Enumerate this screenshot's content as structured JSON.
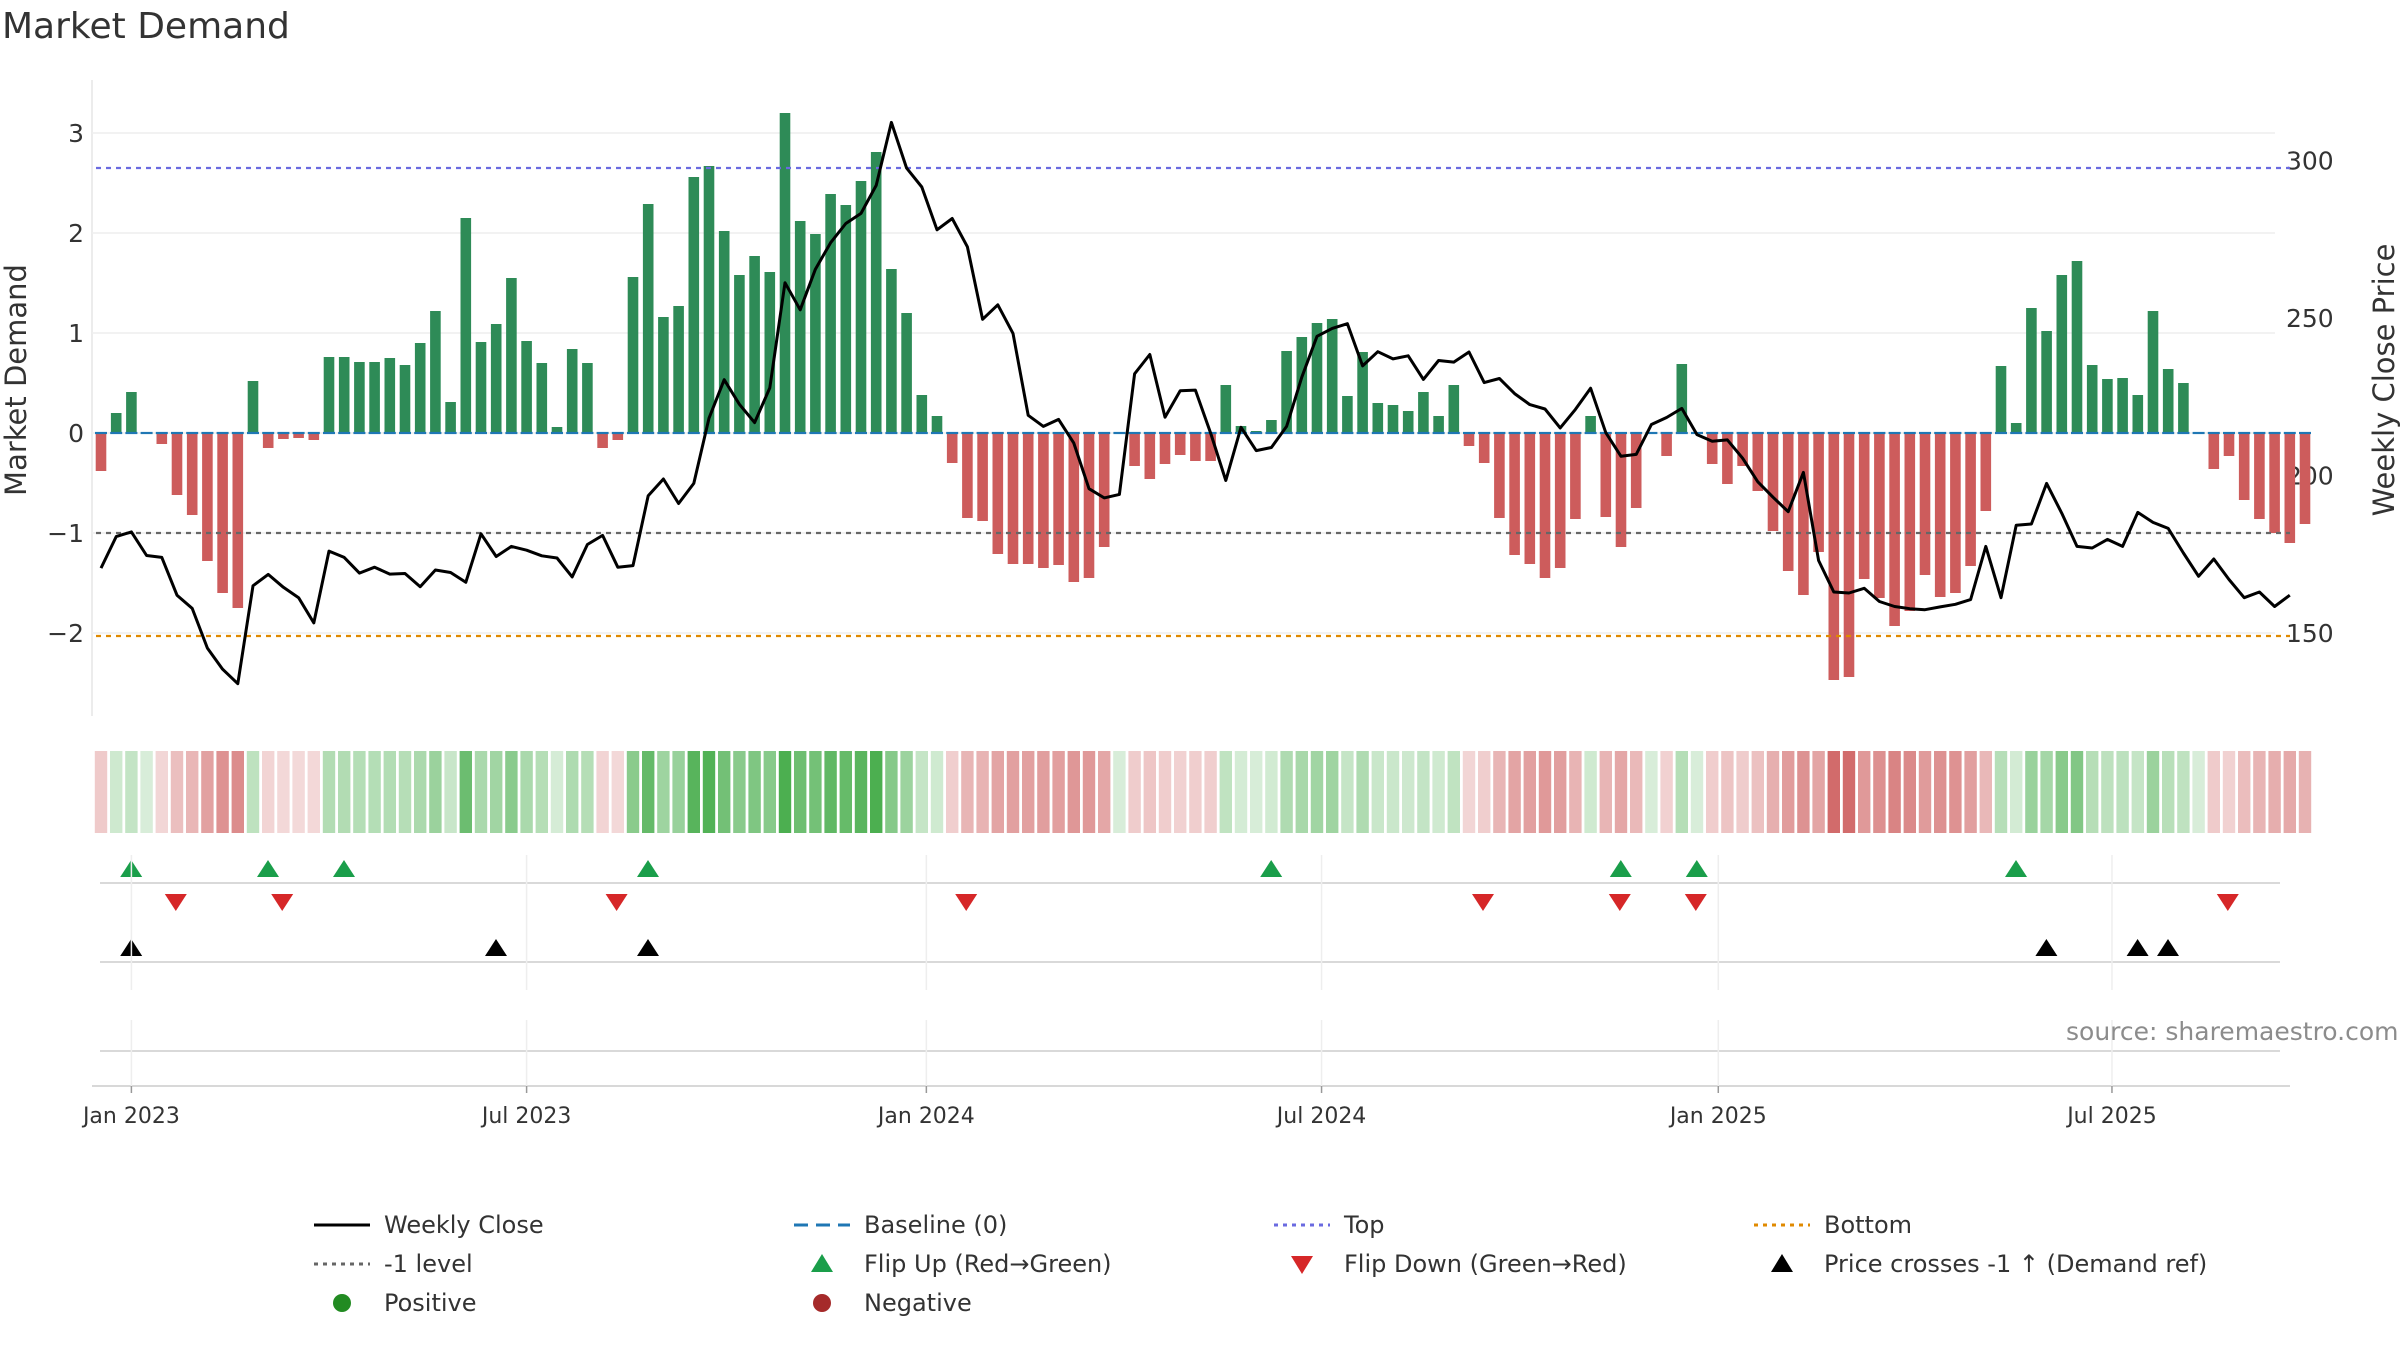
{
  "title": "Market Demand",
  "source": "source: sharemaestro.com",
  "colors": {
    "positive": "#2e8b57",
    "negative": "#cd5c5c",
    "close": "#000000",
    "top": "#6a6ae0",
    "bottom": "#e08a00",
    "minus1": "#666666",
    "baseline": "#1f77b4",
    "flip_up": "#1a9e4a",
    "flip_down": "#d62728",
    "cross": "#000000"
  },
  "legend": {
    "close": "Weekly Close",
    "baseline": "Baseline (0)",
    "top": "Top",
    "bottom": "Bottom",
    "minus1": "-1 level",
    "flip_up": "Flip Up (Red→Green)",
    "flip_down": "Flip Down (Green→Red)",
    "cross": "Price crosses -1 ↑ (Demand ref)",
    "positive": "Positive",
    "negative": "Negative"
  },
  "chart_data": {
    "type": "bar",
    "title": "Market Demand",
    "ylabel": "Market Demand",
    "y2label": "Weekly Close Price",
    "ylim": [
      -2.8,
      3.5
    ],
    "y2lim": [
      125.85,
      325.4
    ],
    "yticks": [
      3,
      2,
      1,
      0,
      -1,
      -2
    ],
    "y2ticks": [
      300,
      250,
      200,
      150
    ],
    "x_ticks": [
      {
        "label": "Jan 2023",
        "index": 2
      },
      {
        "label": "Jul 2023",
        "index": 28
      },
      {
        "label": "Jan 2024",
        "index": 54.3
      },
      {
        "label": "Jul 2024",
        "index": 80.3
      },
      {
        "label": "Jan 2025",
        "index": 106.4
      },
      {
        "label": "Jul 2025",
        "index": 132.3
      }
    ],
    "reference_lines": {
      "top": 2.65,
      "bottom": -2.03,
      "minus1_level": -1.0,
      "baseline": 0
    },
    "demand": [
      -0.38,
      0.2,
      0.41,
      0.0,
      -0.11,
      -0.62,
      -0.82,
      -1.28,
      -1.6,
      -1.75,
      0.52,
      -0.15,
      -0.06,
      -0.05,
      -0.07,
      0.76,
      0.76,
      0.71,
      0.71,
      0.75,
      0.68,
      0.9,
      1.22,
      0.31,
      2.15,
      0.91,
      1.09,
      1.55,
      0.92,
      0.7,
      0.06,
      0.84,
      0.7,
      -0.15,
      -0.07,
      1.56,
      2.29,
      1.16,
      1.27,
      2.56,
      2.67,
      2.02,
      1.58,
      1.77,
      1.61,
      3.2,
      2.12,
      1.99,
      2.39,
      2.28,
      2.52,
      2.81,
      1.64,
      1.2,
      0.38,
      0.17,
      -0.3,
      -0.85,
      -0.88,
      -1.21,
      -1.31,
      -1.31,
      -1.35,
      -1.32,
      -1.49,
      -1.45,
      -1.14,
      0.0,
      -0.33,
      -0.46,
      -0.31,
      -0.22,
      -0.28,
      -0.28,
      0.48,
      0.07,
      0.02,
      0.13,
      0.82,
      0.96,
      1.1,
      1.14,
      0.37,
      0.81,
      0.3,
      0.28,
      0.22,
      0.41,
      0.17,
      0.48,
      -0.13,
      -0.3,
      -0.85,
      -1.22,
      -1.31,
      -1.45,
      -1.35,
      -0.86,
      0.17,
      -0.84,
      -1.14,
      -0.75,
      0.0,
      -0.23,
      0.69,
      0.0,
      -0.31,
      -0.51,
      -0.33,
      -0.58,
      -0.98,
      -1.38,
      -1.62,
      -1.19,
      -2.47,
      -2.44,
      -1.46,
      -1.65,
      -1.93,
      -1.78,
      -1.42,
      -1.64,
      -1.6,
      -1.33,
      -0.78,
      0.67,
      0.1,
      1.25,
      1.02,
      1.58,
      1.72,
      0.68,
      0.54,
      0.55,
      0.38,
      1.22,
      0.64,
      0.5,
      0.0,
      -0.36,
      -0.23,
      -0.67,
      -0.86,
      -1.0,
      -1.1,
      -0.91
    ],
    "weekly_close": [
      170.6,
      180.6,
      182.1,
      174.6,
      174.0,
      162.0,
      157.8,
      145.2,
      138.5,
      133.9,
      165.0,
      168.6,
      164.5,
      161.2,
      153.2,
      176.0,
      174.0,
      169.0,
      170.9,
      168.7,
      168.9,
      164.7,
      170.0,
      169.2,
      166.1,
      181.5,
      174.3,
      177.5,
      176.3,
      174.5,
      173.8,
      167.8,
      178.1,
      181.0,
      170.9,
      171.4,
      193.6,
      198.9,
      191.1,
      197.5,
      218.2,
      230.4,
      222.6,
      216.8,
      227.8,
      261.2,
      252.6,
      265.5,
      273.9,
      280.0,
      283.2,
      292.1,
      312.1,
      297.6,
      291.6,
      278.0,
      281.6,
      272.6,
      249.6,
      254.2,
      245.1,
      219.1,
      215.6,
      217.8,
      210.3,
      195.8,
      192.9,
      194.0,
      232.3,
      238.4,
      218.5,
      226.9,
      227.1,
      213.5,
      198.4,
      215.3,
      207.9,
      208.9,
      215.6,
      231.2,
      244.2,
      246.7,
      248.2,
      234.8,
      239.3,
      237.0,
      238.0,
      230.5,
      236.5,
      236.0,
      239.2,
      229.5,
      230.8,
      226.0,
      222.5,
      221.1,
      215.1,
      221.0,
      227.7,
      213.6,
      206.1,
      206.7,
      216.2,
      218.4,
      221.3,
      213.0,
      210.9,
      211.3,
      205.5,
      198.0,
      193.1,
      188.5,
      201.0,
      173.0,
      163.0,
      162.7,
      164.2,
      160.0,
      158.4,
      157.7,
      157.4,
      158.3,
      159.1,
      160.6,
      177.5,
      161.2,
      184.2,
      184.6,
      197.5,
      188.0,
      177.5,
      177.0,
      179.7,
      177.5,
      188.3,
      185.1,
      183.2,
      175.4,
      168.0,
      173.5,
      167.0,
      161.2,
      163.0,
      158.4,
      162.0
    ],
    "flip_up_indices": [
      1,
      10,
      15,
      35,
      76,
      99,
      104,
      125
    ],
    "flip_down_indices": [
      4,
      11,
      33,
      56,
      90,
      99,
      104,
      139
    ],
    "cross_indices": [
      1,
      25,
      35,
      127,
      133,
      135
    ]
  }
}
